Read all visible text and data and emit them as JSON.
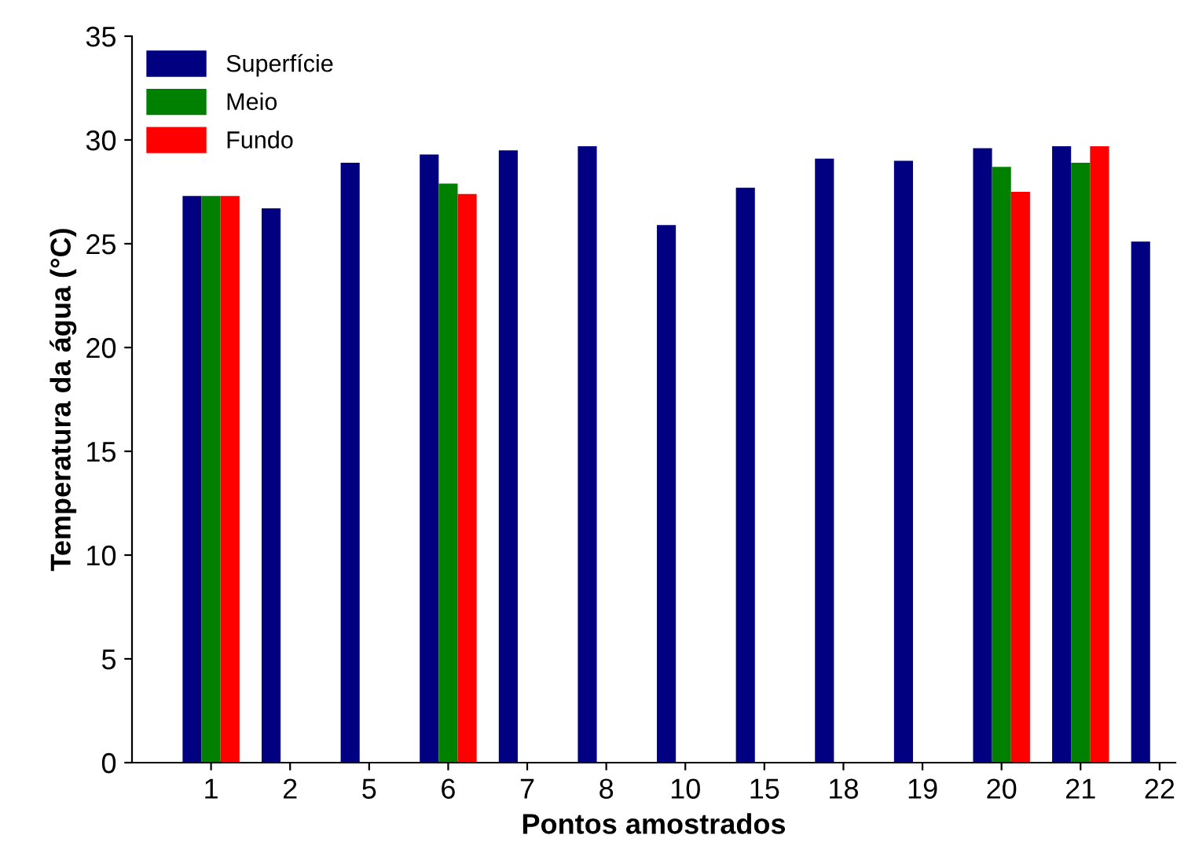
{
  "chart_data": {
    "type": "bar",
    "xlabel": "Pontos amostrados",
    "ylabel": "Temperatura da água (°C)",
    "categories": [
      "1",
      "2",
      "5",
      "6",
      "7",
      "8",
      "10",
      "15",
      "18",
      "19",
      "20",
      "21",
      "22"
    ],
    "series": [
      {
        "name": "Superfície",
        "color": "#000080",
        "values": [
          27.3,
          26.7,
          28.9,
          29.3,
          29.5,
          29.7,
          25.9,
          27.7,
          29.1,
          29.0,
          29.6,
          29.7,
          25.1
        ]
      },
      {
        "name": "Meio",
        "color": "#008000",
        "values": [
          27.3,
          null,
          null,
          27.9,
          null,
          null,
          null,
          null,
          null,
          null,
          28.7,
          28.9,
          null
        ]
      },
      {
        "name": "Fundo",
        "color": "#ff0000",
        "values": [
          27.3,
          null,
          null,
          27.4,
          null,
          null,
          null,
          null,
          null,
          null,
          27.5,
          29.7,
          null
        ]
      }
    ],
    "ylim": [
      0,
      35
    ],
    "yticks": [
      0,
      5,
      10,
      15,
      20,
      25,
      30,
      35
    ],
    "grid": false,
    "legend": "top left"
  }
}
